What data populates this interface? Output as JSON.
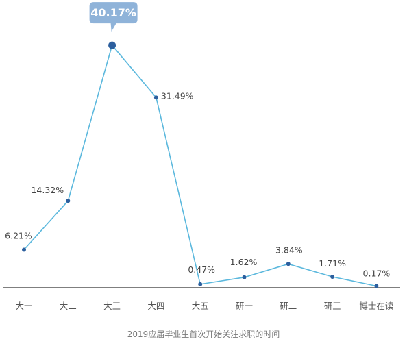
{
  "chart_data": {
    "type": "line",
    "caption": "2019应届毕业生首次开始关注求职的时间",
    "categories": [
      "大一",
      "大二",
      "大三",
      "大四",
      "大五",
      "研一",
      "研二",
      "研三",
      "博士在读"
    ],
    "values": [
      6.21,
      14.32,
      40.17,
      31.49,
      0.47,
      1.62,
      3.84,
      1.71,
      0.17
    ],
    "value_labels": [
      "6.21%",
      "14.32%",
      "40.17%",
      "31.49%",
      "0.47%",
      "1.62%",
      "3.84%",
      "1.71%",
      "0.17%"
    ],
    "highlight_index": 2,
    "ylim": [
      0,
      42
    ],
    "grid": false,
    "colors": {
      "line": "#5bb8dd",
      "point": "#2c5f9e",
      "callout": "#8fb3d9",
      "axis": "#555555"
    }
  }
}
